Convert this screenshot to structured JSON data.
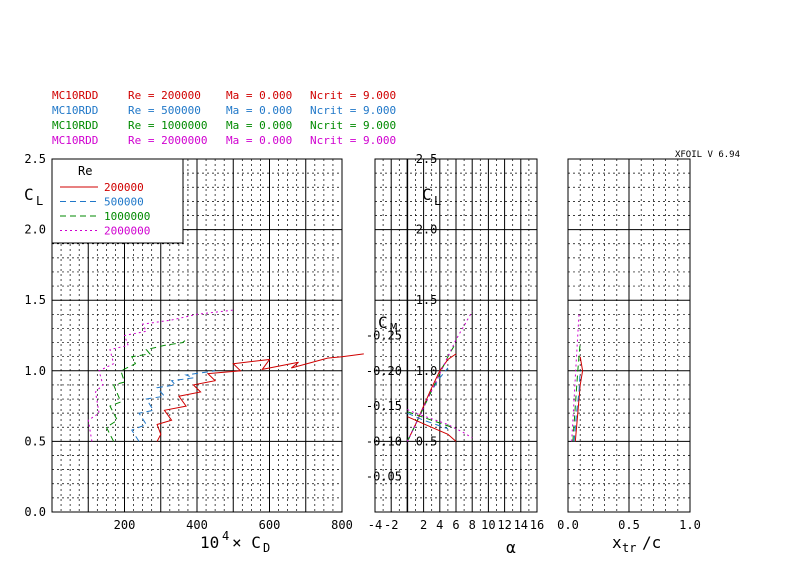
{
  "header": {
    "version_label": "XFOIL  V 6.94",
    "rows": [
      {
        "airfoil": "MC10RDD",
        "re_text": "Re = 200000",
        "ma_text": "Ma = 0.000",
        "ncrit_text": "Ncrit = 9.000",
        "color": "#d00000"
      },
      {
        "airfoil": "MC10RDD",
        "re_text": "Re = 500000",
        "ma_text": "Ma = 0.000",
        "ncrit_text": "Ncrit = 9.000",
        "color": "#1f77c8"
      },
      {
        "airfoil": "MC10RDD",
        "re_text": "Re = 1000000",
        "ma_text": "Ma = 0.000",
        "ncrit_text": "Ncrit = 9.000",
        "color": "#008a00"
      },
      {
        "airfoil": "MC10RDD",
        "re_text": "Re = 2000000",
        "ma_text": "Ma = 0.000",
        "ncrit_text": "Ncrit = 9.000",
        "color": "#d000d0"
      }
    ]
  },
  "chart_data": [
    {
      "type": "line",
      "id": "drag-polar",
      "xlabel": "10^4 × C_D",
      "ylabel": "C_L",
      "xlim": [
        0,
        800
      ],
      "ylim": [
        0,
        2.5
      ],
      "x_ticks": [
        "200",
        "400",
        "600",
        "800"
      ],
      "y_ticks": [
        "0.0",
        "0.5",
        "1.0",
        "1.5",
        "2.0",
        "2.5"
      ],
      "grid": true,
      "legend": {
        "title": "Re",
        "placement": "top-left",
        "entries": [
          "200000",
          "500000",
          "1000000",
          "2000000"
        ]
      },
      "series": [
        {
          "name": "200000",
          "color": "#d00000",
          "dash": "solid",
          "x": [
            290,
            300,
            290,
            330,
            310,
            370,
            350,
            410,
            390,
            450,
            430,
            520,
            500,
            600,
            580,
            680,
            660,
            760,
            800,
            860
          ],
          "y": [
            0.5,
            0.55,
            0.62,
            0.65,
            0.72,
            0.75,
            0.82,
            0.85,
            0.9,
            0.93,
            0.98,
            1.0,
            1.05,
            1.08,
            1.01,
            1.06,
            1.02,
            1.09,
            1.1,
            1.12
          ]
        },
        {
          "name": "500000",
          "color": "#1f77c8",
          "dash": "dash",
          "x": [
            240,
            220,
            260,
            240,
            280,
            260,
            310,
            290,
            340,
            330,
            390,
            370,
            450
          ],
          "y": [
            0.5,
            0.58,
            0.62,
            0.7,
            0.72,
            0.8,
            0.82,
            0.88,
            0.9,
            0.93,
            0.95,
            0.97,
            1.0
          ]
        },
        {
          "name": "1000000",
          "color": "#008a00",
          "dash": "dash",
          "x": [
            170,
            150,
            180,
            160,
            190,
            170,
            200,
            190,
            230,
            220,
            270,
            260,
            310,
            360,
            370
          ],
          "y": [
            0.5,
            0.6,
            0.65,
            0.75,
            0.78,
            0.9,
            0.92,
            1.0,
            1.05,
            1.1,
            1.12,
            1.15,
            1.18,
            1.2,
            1.22
          ]
        },
        {
          "name": "2000000",
          "color": "#d000d0",
          "dash": "dot",
          "x": [
            110,
            100,
            130,
            120,
            140,
            130,
            170,
            160,
            210,
            200,
            260,
            250,
            330,
            400,
            500
          ],
          "y": [
            0.5,
            0.65,
            0.7,
            0.85,
            0.9,
            1.0,
            1.05,
            1.15,
            1.18,
            1.25,
            1.28,
            1.33,
            1.36,
            1.4,
            1.43
          ]
        }
      ]
    },
    {
      "type": "line",
      "id": "lift-moment-alpha",
      "xlabel": "α",
      "ylabel_cl": "C_L",
      "ylabel_cm": "C_M",
      "xlim": [
        -4,
        16
      ],
      "ylim_cl": [
        0,
        2.5
      ],
      "ylim_cm": [
        0,
        0.25
      ],
      "x_ticks": [
        "-4",
        "-2",
        "2",
        "4",
        "6",
        "8",
        "10",
        "12",
        "14",
        "16"
      ],
      "cl_ticks": [
        "0.5",
        "1.0",
        "1.5",
        "2.0",
        "2.5"
      ],
      "cm_ticks": [
        "-0.05",
        "-0.10",
        "-0.15",
        "-0.20",
        "-0.25"
      ],
      "grid": true,
      "cl_series": [
        {
          "name": "200000",
          "color": "#d00000",
          "alpha": [
            0,
            1,
            2,
            3,
            4,
            5,
            6
          ],
          "cl": [
            0.5,
            0.62,
            0.75,
            0.88,
            1.0,
            1.08,
            1.12
          ]
        },
        {
          "name": "500000",
          "color": "#1f77c8",
          "alpha": [
            0,
            1,
            2,
            3,
            4,
            5
          ],
          "cl": [
            0.5,
            0.62,
            0.74,
            0.86,
            0.95,
            1.02
          ]
        },
        {
          "name": "1000000",
          "color": "#008a00",
          "alpha": [
            0,
            1,
            2,
            3,
            4,
            5,
            6
          ],
          "cl": [
            0.5,
            0.62,
            0.74,
            0.86,
            0.98,
            1.1,
            1.2
          ]
        },
        {
          "name": "2000000",
          "color": "#d000d0",
          "alpha": [
            0,
            1,
            2,
            3,
            4,
            5,
            6,
            7,
            8
          ],
          "cl": [
            0.5,
            0.62,
            0.74,
            0.86,
            0.98,
            1.1,
            1.22,
            1.32,
            1.42
          ]
        }
      ],
      "cm_series": [
        {
          "name": "200000",
          "color": "#d00000",
          "alpha": [
            0,
            1,
            2,
            3,
            4,
            5,
            6
          ],
          "cm": [
            -0.135,
            -0.13,
            -0.125,
            -0.12,
            -0.115,
            -0.11,
            -0.1
          ]
        },
        {
          "name": "500000",
          "color": "#1f77c8",
          "alpha": [
            0,
            1,
            2,
            3,
            4,
            5
          ],
          "cm": [
            -0.14,
            -0.135,
            -0.13,
            -0.126,
            -0.122,
            -0.118
          ]
        },
        {
          "name": "1000000",
          "color": "#008a00",
          "alpha": [
            0,
            1,
            2,
            3,
            4,
            5,
            6
          ],
          "cm": [
            -0.142,
            -0.138,
            -0.134,
            -0.13,
            -0.126,
            -0.122,
            -0.118
          ]
        },
        {
          "name": "2000000",
          "color": "#d000d0",
          "alpha": [
            0,
            1,
            2,
            3,
            4,
            5,
            6,
            7,
            8
          ],
          "cm": [
            -0.145,
            -0.14,
            -0.136,
            -0.132,
            -0.128,
            -0.124,
            -0.118,
            -0.112,
            -0.105
          ]
        }
      ]
    },
    {
      "type": "line",
      "id": "transition",
      "xlabel": "x_tr /c",
      "ylabel": "",
      "xlim": [
        0,
        1
      ],
      "ylim": [
        0,
        2.5
      ],
      "x_ticks": [
        "0.0",
        "0.5",
        "1.0"
      ],
      "grid": true,
      "series": [
        {
          "name": "200000",
          "color": "#d00000",
          "x": [
            0.06,
            0.08,
            0.1,
            0.12,
            0.1
          ],
          "y": [
            0.5,
            0.7,
            0.9,
            1.0,
            1.1
          ]
        },
        {
          "name": "500000",
          "color": "#1f77c8",
          "x": [
            0.05,
            0.07,
            0.09,
            0.1
          ],
          "y": [
            0.5,
            0.7,
            0.85,
            1.0
          ]
        },
        {
          "name": "1000000",
          "color": "#008a00",
          "x": [
            0.04,
            0.06,
            0.08,
            0.1
          ],
          "y": [
            0.5,
            0.75,
            1.0,
            1.2
          ]
        },
        {
          "name": "2000000",
          "color": "#d000d0",
          "x": [
            0.03,
            0.05,
            0.07,
            0.09
          ],
          "y": [
            0.5,
            0.8,
            1.1,
            1.4
          ]
        }
      ]
    }
  ]
}
